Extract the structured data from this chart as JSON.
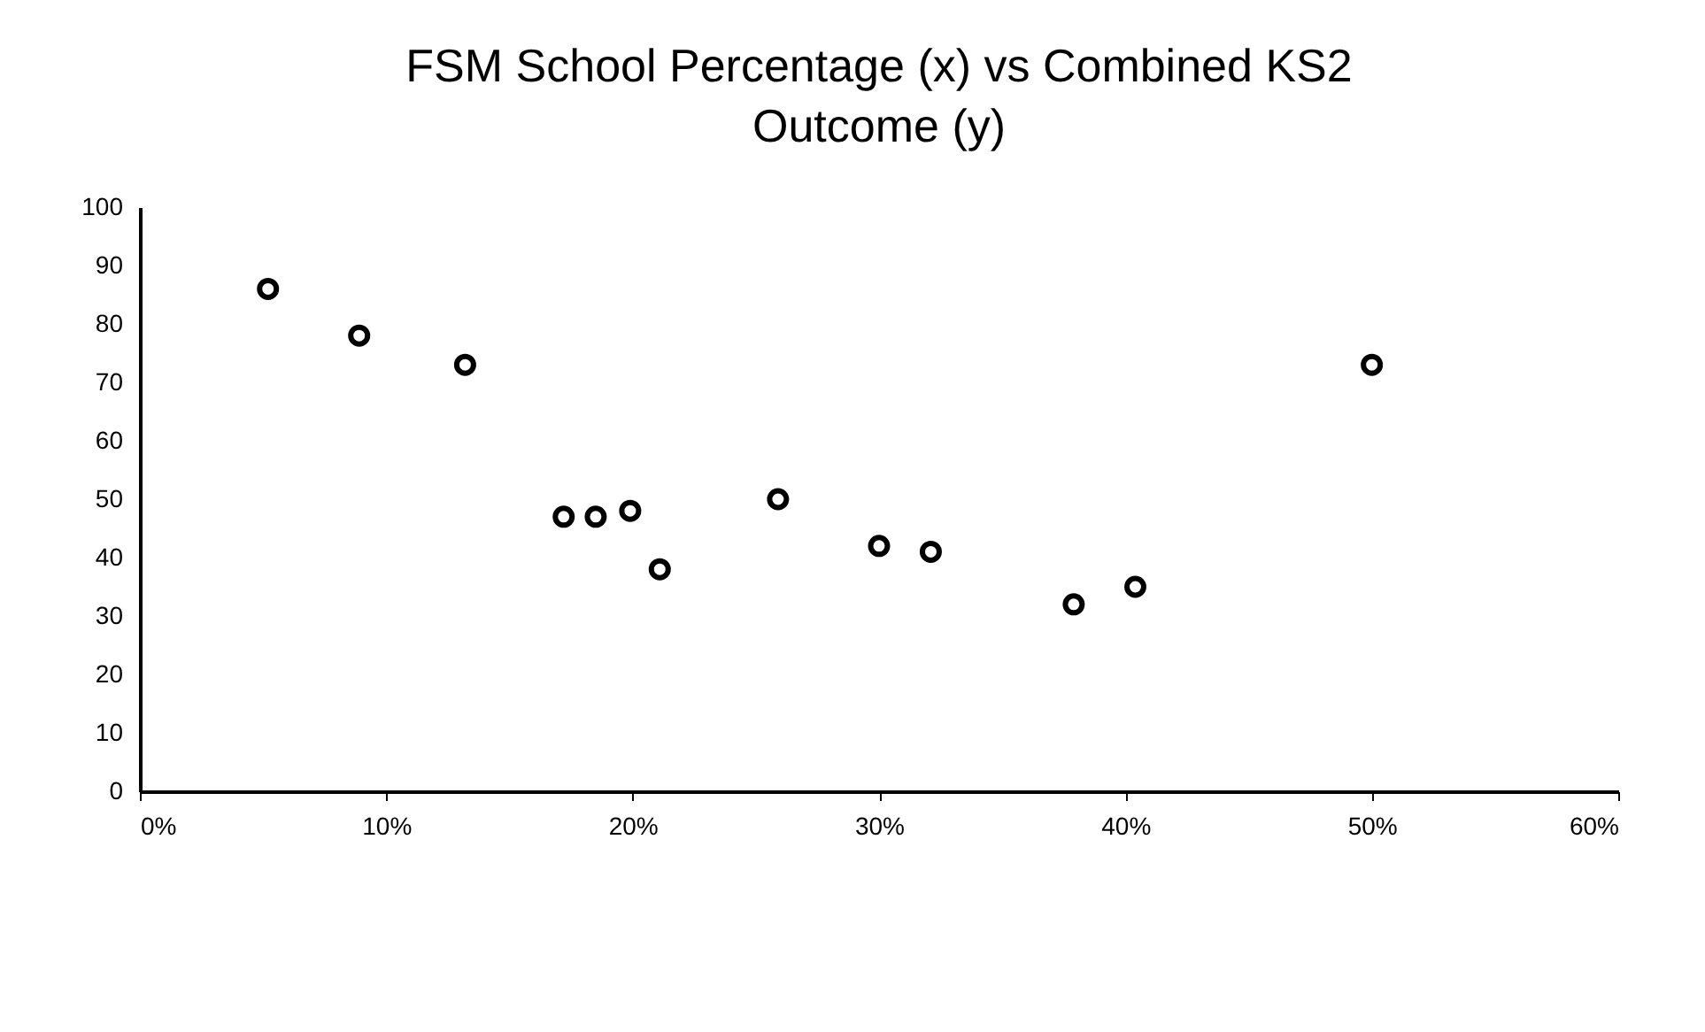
{
  "chart_data": {
    "type": "scatter",
    "title": "FSM School Percentage (x) vs Combined KS2 Outcome (y)",
    "x": [
      5.2,
      8.9,
      13.2,
      17.2,
      18.5,
      19.9,
      21.1,
      25.9,
      30.0,
      32.1,
      37.9,
      40.4,
      50.0
    ],
    "series": [
      {
        "color": "#000000",
        "values": [
          86,
          78,
          73,
          47,
          47,
          48,
          38,
          50,
          42,
          41,
          32,
          35,
          73
        ]
      }
    ],
    "xlim": [
      0,
      60
    ],
    "xticks": [
      {
        "value": 0,
        "label": "0%"
      },
      {
        "value": 10,
        "label": "10%"
      },
      {
        "value": 20,
        "label": "20%"
      },
      {
        "value": 30,
        "label": "30%"
      },
      {
        "value": 40,
        "label": "40%"
      },
      {
        "value": 50,
        "label": "50%"
      },
      {
        "value": 60,
        "label": "60%"
      }
    ],
    "ylim": [
      0,
      100
    ],
    "yticks": [
      0,
      10,
      20,
      30,
      40,
      50,
      60,
      70,
      80,
      90,
      100
    ],
    "marker": "circle",
    "grid": false
  }
}
